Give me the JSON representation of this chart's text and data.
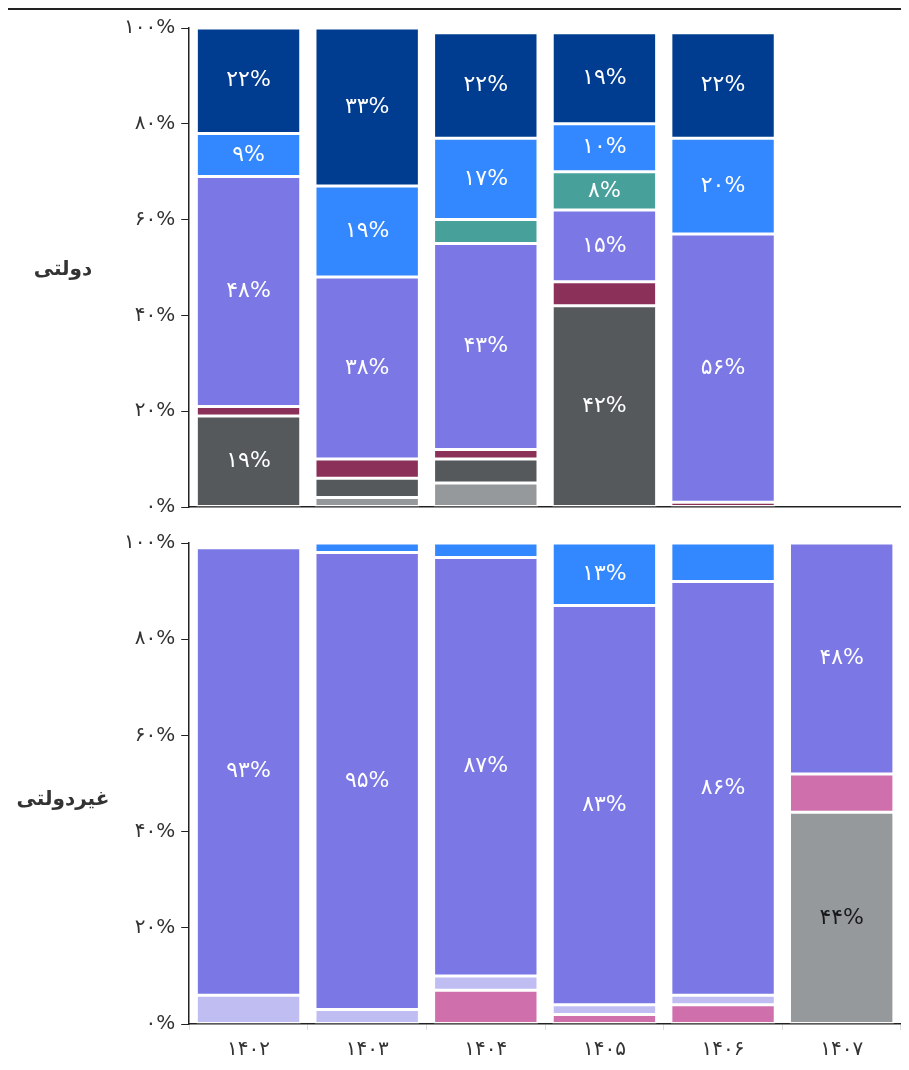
{
  "chart_data": [
    {
      "type": "bar",
      "stacked": true,
      "ylabel": "دولتی",
      "categories": [
        "۱۴۰۲",
        "۱۴۰۳",
        "۱۴۰۴",
        "۱۴۰۵",
        "۱۴۰۶",
        "۱۴۰۷"
      ],
      "ylim": [
        0,
        100
      ],
      "yticks": [
        {
          "value": 0,
          "label": "۰%"
        },
        {
          "value": 20,
          "label": "۲۰%"
        },
        {
          "value": 40,
          "label": "۴۰%"
        },
        {
          "value": 60,
          "label": "۶۰%"
        },
        {
          "value": 80,
          "label": "۸۰%"
        },
        {
          "value": 100,
          "label": "۱۰۰%"
        }
      ],
      "grid": false,
      "legend": false,
      "tick_labels": "y",
      "series": [
        {
          "color": "#95999c",
          "values": [
            null,
            2,
            5,
            null,
            null,
            null
          ],
          "value_labels": [
            null,
            null,
            null,
            null,
            null,
            null
          ]
        },
        {
          "color": "#55595c",
          "values": [
            19,
            4,
            5,
            42,
            null,
            null
          ],
          "value_labels": [
            "۱۹%",
            null,
            null,
            "۴۲%",
            null,
            null
          ]
        },
        {
          "color": "#8b3058",
          "values": [
            2,
            4,
            2,
            5,
            1,
            null
          ],
          "value_labels": [
            null,
            null,
            null,
            null,
            null,
            null
          ]
        },
        {
          "color": "#7b78e5",
          "values": [
            48,
            38,
            43,
            15,
            56,
            null
          ],
          "value_labels": [
            "۴۸%",
            "۳۸%",
            "۴۳%",
            "۱۵%",
            "۵۶%",
            null
          ]
        },
        {
          "color": "#48a09b",
          "values": [
            null,
            null,
            5,
            8,
            null,
            null
          ],
          "value_labels": [
            null,
            null,
            null,
            "۸%",
            null,
            null
          ]
        },
        {
          "color": "#3388ff",
          "values": [
            9,
            19,
            17,
            10,
            20,
            null
          ],
          "value_labels": [
            "۹%",
            "۱۹%",
            "۱۷%",
            "۱۰%",
            "۲۰%",
            null
          ]
        },
        {
          "color": "#003c90",
          "values": [
            22,
            33,
            22,
            19,
            22,
            null
          ],
          "value_labels": [
            "۲۲%",
            "۳۳%",
            "۲۲%",
            "۱۹%",
            "۲۲%",
            null
          ]
        }
      ]
    },
    {
      "type": "bar",
      "stacked": true,
      "ylabel": "غیردولتی",
      "categories": [
        "۱۴۰۲",
        "۱۴۰۳",
        "۱۴۰۴",
        "۱۴۰۵",
        "۱۴۰۶",
        "۱۴۰۷"
      ],
      "ylim": [
        0,
        100
      ],
      "yticks": [
        {
          "value": 0,
          "label": "۰%"
        },
        {
          "value": 20,
          "label": "۲۰%"
        },
        {
          "value": 40,
          "label": "۴۰%"
        },
        {
          "value": 60,
          "label": "۶۰%"
        },
        {
          "value": 80,
          "label": "۸۰%"
        },
        {
          "value": 100,
          "label": "۱۰۰%"
        }
      ],
      "grid": false,
      "legend": false,
      "series": [
        {
          "color": "#95999c",
          "values": [
            null,
            null,
            null,
            null,
            null,
            44
          ],
          "value_labels": [
            null,
            null,
            null,
            null,
            null,
            "۴۴%"
          ]
        },
        {
          "color": "#cf70ad",
          "values": [
            null,
            null,
            7,
            2,
            4,
            8
          ],
          "value_labels": [
            null,
            null,
            null,
            null,
            null,
            null
          ]
        },
        {
          "color": "#c0bdf3",
          "values": [
            6,
            3,
            3,
            2,
            2,
            null
          ],
          "value_labels": [
            null,
            null,
            null,
            null,
            null,
            null
          ]
        },
        {
          "color": "#7b78e5",
          "values": [
            93,
            95,
            87,
            83,
            86,
            48
          ],
          "value_labels": [
            "۹۳%",
            "۹۵%",
            "۸۷%",
            "۸۳%",
            "۸۶%",
            "۴۸%"
          ]
        },
        {
          "color": "#3388ff",
          "values": [
            null,
            2,
            3,
            13,
            8,
            null
          ],
          "value_labels": [
            null,
            null,
            null,
            "۱۳%",
            null,
            null
          ]
        }
      ]
    }
  ]
}
